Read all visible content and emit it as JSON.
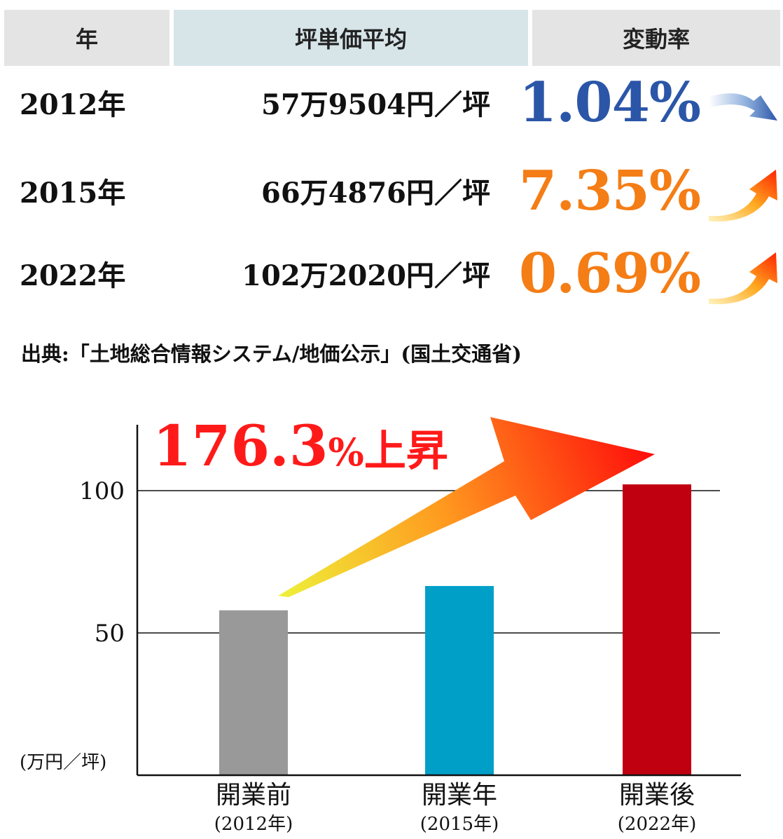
{
  "table": {
    "headers": {
      "year": "年",
      "price": "坪単価平均",
      "rate": "変動率"
    },
    "rows": [
      {
        "year": "2012年",
        "price": "57万9504円／坪",
        "rate": "1.04%",
        "direction": "down",
        "color": "#2b56a8"
      },
      {
        "year": "2015年",
        "price": "66万4876円／坪",
        "rate": "7.35%",
        "direction": "up",
        "color": "#f47d15"
      },
      {
        "year": "2022年",
        "price": "102万2020円／坪",
        "rate": "0.69%",
        "direction": "up",
        "color": "#f47d15"
      }
    ]
  },
  "source": "出典:「土地総合情報システム/地価公示」(国土交通省)",
  "colors": {
    "down_arrow": "#2b56a8",
    "up_arrow": "#ff3300",
    "highlight_text": "#ff1a1a",
    "axis": "#111111"
  },
  "chart_data": {
    "type": "bar",
    "categories": [
      "開業前",
      "開業年",
      "開業後"
    ],
    "category_sublabels": [
      "(2012年)",
      "(2015年)",
      "(2022年)"
    ],
    "values": [
      57.95,
      66.49,
      102.2
    ],
    "bar_colors": [
      "#999999",
      "#009fc8",
      "#c00010"
    ],
    "ylabel": "(万円／坪)",
    "yticks": [
      50,
      100
    ],
    "ylim": [
      0,
      125
    ],
    "grid": true,
    "annotation": {
      "value": "176.3",
      "unit": "%",
      "text": "上昇"
    }
  }
}
